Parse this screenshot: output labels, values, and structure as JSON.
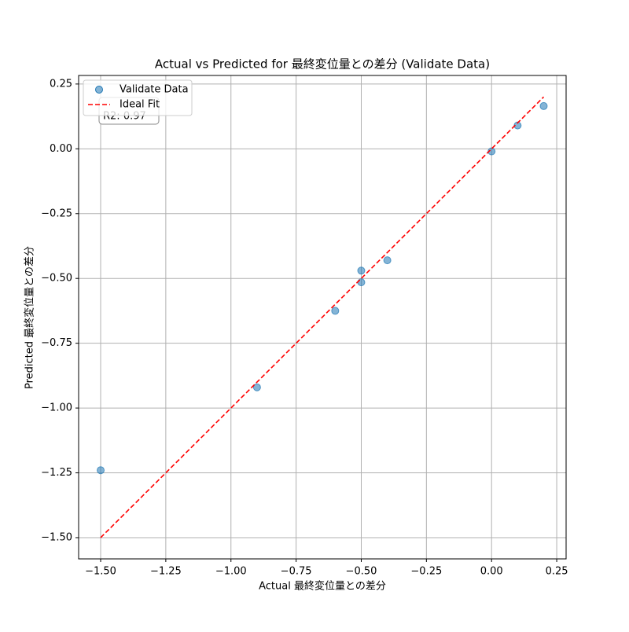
{
  "chart_data": {
    "type": "scatter",
    "title": "Actual vs Predicted for 最終変位量との差分 (Validate Data)",
    "x_label": "Actual 最終変位量との差分",
    "y_label": "Predicted 最終変位量との差分",
    "annotation": "R2: 0.97",
    "series": [
      {
        "name": "Validate Data",
        "color": "#1f77b4",
        "kind": "scatter",
        "x": [
          -1.5,
          -0.9,
          -0.6,
          -0.5,
          -0.5,
          -0.4,
          0.0,
          0.1,
          0.2
        ],
        "values": [
          -1.24,
          -0.92,
          -0.625,
          -0.47,
          -0.515,
          -0.43,
          -0.01,
          0.09,
          0.165
        ]
      },
      {
        "name": "Ideal Fit",
        "color": "#ff0000",
        "kind": "line",
        "dashed": true,
        "x": [
          -1.5,
          0.2
        ],
        "values": [
          -1.5,
          0.2
        ]
      }
    ],
    "xlim": [
      -1.5845,
      0.286
    ],
    "ylim": [
      -1.582,
      0.283
    ],
    "xticks": [
      {
        "value": -1.5,
        "label": "−1.50"
      },
      {
        "value": -1.25,
        "label": "−1.25"
      },
      {
        "value": -1.0,
        "label": "−1.00"
      },
      {
        "value": -0.75,
        "label": "−0.75"
      },
      {
        "value": -0.5,
        "label": "−0.50"
      },
      {
        "value": -0.25,
        "label": "−0.25"
      },
      {
        "value": 0,
        "label": "0.00"
      },
      0.25
    ],
    "yticks": [
      {
        "value": -1.5,
        "label": "−1.50"
      },
      {
        "value": -1.25,
        "label": "−1.25"
      },
      {
        "value": -1.0,
        "label": "−1.00"
      },
      {
        "value": -0.75,
        "label": "−0.75"
      },
      {
        "value": -0.5,
        "label": "−0.50"
      },
      {
        "value": -0.25,
        "label": "−0.25"
      },
      {
        "value": 0,
        "label": "0.00"
      },
      0.25
    ],
    "grid": true,
    "legend": "upper left"
  }
}
